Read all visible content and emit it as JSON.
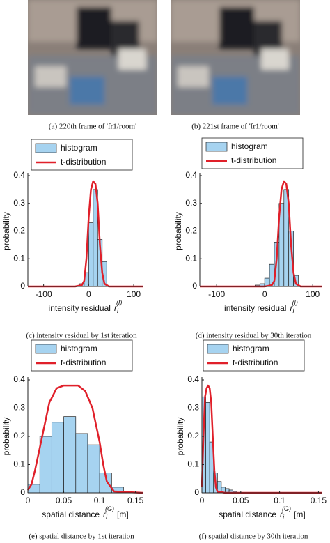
{
  "images": [
    {
      "caption": "(a) 220th frame of 'fr1/room'"
    },
    {
      "caption": "(b) 221st frame of 'fr1/room'"
    }
  ],
  "chart_data": [
    {
      "type": "histogram",
      "caption": "(c) intensity residual by 1st iteration",
      "ylabel": "probability",
      "xlabel": "intensity residual",
      "xlabel_symbol": {
        "base": "r",
        "sub": "i",
        "sup": "(I)"
      },
      "xlim": [
        -135,
        120
      ],
      "xticks": [
        -100,
        0,
        100
      ],
      "ylim": [
        0,
        0.4
      ],
      "yticks": [
        0,
        0.1,
        0.2,
        0.3,
        0.4
      ],
      "name": "histogram",
      "color": "#a6d3f0",
      "bins": [
        -20,
        -10,
        0,
        10,
        20,
        30,
        40
      ],
      "values": [
        0.01,
        0.05,
        0.23,
        0.35,
        0.17,
        0.09
      ],
      "fit": {
        "name": "t-distribution",
        "color": "#e0202a",
        "x": [
          -135,
          -30,
          -15,
          -10,
          -5,
          0,
          5,
          10,
          15,
          20,
          25,
          30,
          35,
          45,
          120
        ],
        "values": [
          0,
          0,
          0.005,
          0.02,
          0.1,
          0.25,
          0.35,
          0.38,
          0.37,
          0.3,
          0.15,
          0.05,
          0.01,
          0,
          0
        ]
      }
    },
    {
      "type": "histogram",
      "caption": "(d) intensity residual by 30th iteration",
      "ylabel": "probability",
      "xlabel": "intensity residual",
      "xlabel_symbol": {
        "base": "r",
        "sub": "i",
        "sup": "(I)"
      },
      "xlim": [
        -135,
        120
      ],
      "xticks": [
        -100,
        0,
        100
      ],
      "ylim": [
        0,
        0.4
      ],
      "yticks": [
        0,
        0.1,
        0.2,
        0.3,
        0.4
      ],
      "name": "histogram",
      "color": "#a6d3f0",
      "bins": [
        -20,
        -10,
        0,
        10,
        20,
        30,
        40,
        50,
        60,
        70
      ],
      "values": [
        0.005,
        0.01,
        0.03,
        0.08,
        0.16,
        0.3,
        0.35,
        0.2,
        0.04
      ],
      "fit": {
        "name": "t-distribution",
        "color": "#e0202a",
        "x": [
          -135,
          0,
          15,
          20,
          25,
          30,
          35,
          40,
          45,
          50,
          55,
          60,
          65,
          75,
          120
        ],
        "values": [
          0,
          0,
          0.005,
          0.02,
          0.1,
          0.25,
          0.35,
          0.38,
          0.37,
          0.3,
          0.15,
          0.05,
          0.01,
          0,
          0
        ]
      }
    },
    {
      "type": "histogram",
      "caption": "(e) spatial distance by 1st iteration",
      "ylabel": "probability",
      "xlabel": "spatial distance",
      "xlabel_symbol": {
        "base": "r",
        "sub": "i",
        "sup": "(G)"
      },
      "xlabel_unit": "[m]",
      "xlim": [
        0,
        0.16
      ],
      "xticks": [
        0,
        0.05,
        0.1,
        0.15
      ],
      "ylim": [
        0,
        0.4
      ],
      "yticks": [
        0,
        0.1,
        0.2,
        0.3,
        0.4
      ],
      "name": "histogram",
      "color": "#a6d3f0",
      "bins": [
        0,
        0.0167,
        0.0333,
        0.05,
        0.0667,
        0.0833,
        0.1,
        0.1167,
        0.1333
      ],
      "values": [
        0.03,
        0.2,
        0.25,
        0.27,
        0.21,
        0.17,
        0.07,
        0.02
      ],
      "fit": {
        "name": "t-distribution",
        "color": "#e0202a",
        "x": [
          0,
          0.005,
          0.01,
          0.02,
          0.03,
          0.04,
          0.05,
          0.06,
          0.07,
          0.08,
          0.09,
          0.1,
          0.105,
          0.11,
          0.12,
          0.16
        ],
        "values": [
          0.01,
          0.03,
          0.08,
          0.2,
          0.32,
          0.37,
          0.38,
          0.38,
          0.38,
          0.36,
          0.3,
          0.18,
          0.1,
          0.04,
          0.005,
          0
        ]
      }
    },
    {
      "type": "histogram",
      "caption": "(f) spatial distance by 30th iteration",
      "ylabel": "probability",
      "xlabel": "spatial distance",
      "xlabel_symbol": {
        "base": "r",
        "sub": "i",
        "sup": "(G)"
      },
      "xlabel_unit": "[m]",
      "xlim": [
        0,
        0.155
      ],
      "xticks": [
        0,
        0.05,
        0.1,
        0.15
      ],
      "ylim": [
        0,
        0.4
      ],
      "yticks": [
        0,
        0.1,
        0.2,
        0.3,
        0.4
      ],
      "name": "histogram",
      "color": "#a6d3f0",
      "bins": [
        0,
        0.005,
        0.01,
        0.015,
        0.02,
        0.025,
        0.03,
        0.035,
        0.04,
        0.045
      ],
      "values": [
        0.34,
        0.32,
        0.18,
        0.07,
        0.04,
        0.02,
        0.015,
        0.01,
        0.005
      ],
      "fit": {
        "name": "t-distribution",
        "color": "#e0202a",
        "x": [
          0,
          0.002,
          0.004,
          0.006,
          0.008,
          0.01,
          0.012,
          0.014,
          0.016,
          0.018,
          0.02,
          0.03,
          0.155
        ],
        "values": [
          0.02,
          0.2,
          0.34,
          0.37,
          0.38,
          0.37,
          0.32,
          0.2,
          0.08,
          0.02,
          0.005,
          0,
          0
        ]
      }
    }
  ]
}
